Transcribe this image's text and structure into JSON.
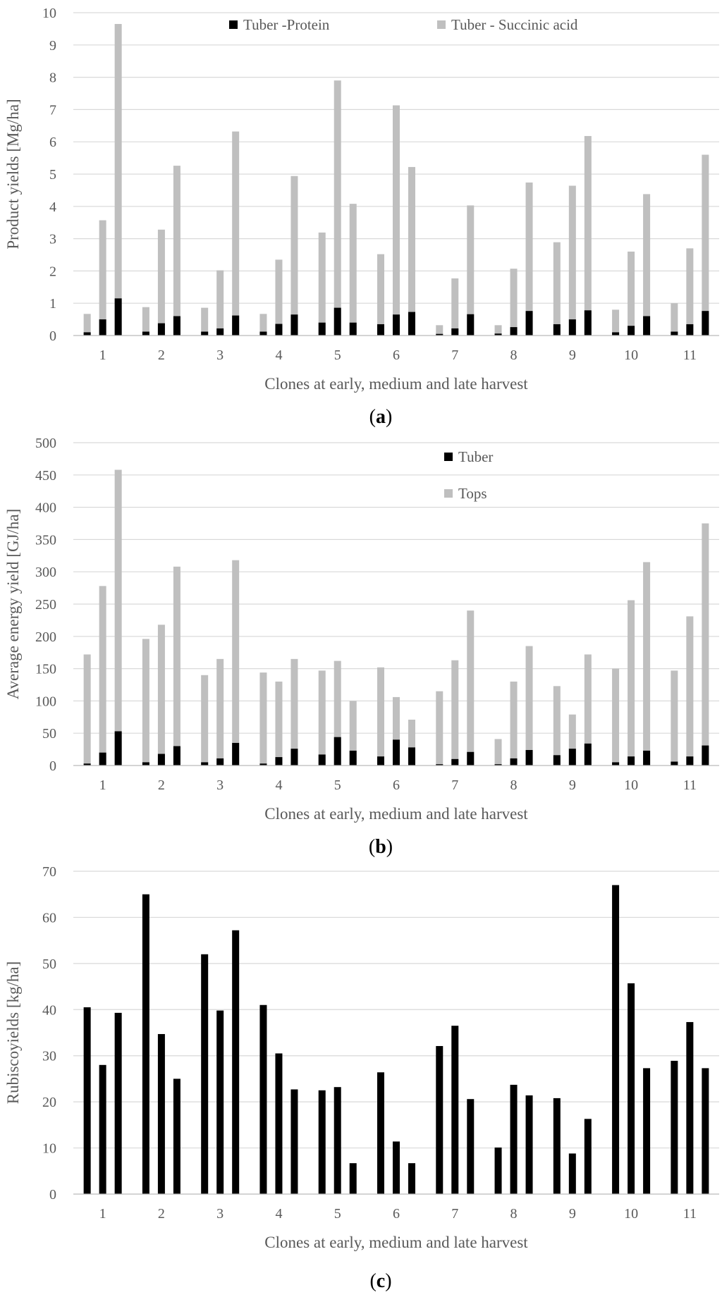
{
  "colors": {
    "black": "#000000",
    "gray": "#bfbfbf",
    "grid": "#d9d9d9",
    "text": "#595959"
  },
  "chart_data": [
    {
      "type": "bar",
      "caption_open": "(",
      "caption_letter": "a",
      "caption_close": ")",
      "xlabel": "Clones at early, medium and late harvest",
      "ylabel": "Product yields [Mg/ha]",
      "ylim": [
        0,
        10
      ],
      "yticks": [
        0,
        1,
        2,
        3,
        4,
        5,
        6,
        7,
        8,
        9,
        10
      ],
      "categories": [
        "1",
        "2",
        "3",
        "4",
        "5",
        "6",
        "7",
        "8",
        "9",
        "10",
        "11"
      ],
      "harvests": [
        "early",
        "medium",
        "late"
      ],
      "legend_position": "top",
      "series": [
        {
          "name": "Tuber -Protein",
          "color": "#000000",
          "values": [
            [
              0.1,
              0.5,
              1.15
            ],
            [
              0.12,
              0.38,
              0.6
            ],
            [
              0.12,
              0.22,
              0.62
            ],
            [
              0.12,
              0.36,
              0.65
            ],
            [
              0.4,
              0.86,
              0.4
            ],
            [
              0.35,
              0.65,
              0.73
            ],
            [
              0.05,
              0.22,
              0.66
            ],
            [
              0.06,
              0.26,
              0.76
            ],
            [
              0.35,
              0.5,
              0.78
            ],
            [
              0.1,
              0.3,
              0.6
            ],
            [
              0.12,
              0.35,
              0.76
            ]
          ]
        },
        {
          "name": "Tuber - Succinic acid",
          "color": "#bfbfbf",
          "values": [
            [
              0.67,
              3.57,
              9.65
            ],
            [
              0.88,
              3.28,
              5.26
            ],
            [
              0.86,
              2.02,
              6.32
            ],
            [
              0.67,
              2.35,
              4.94
            ],
            [
              3.19,
              7.9,
              4.08
            ],
            [
              2.52,
              7.13,
              5.22
            ],
            [
              0.32,
              1.77,
              4.03
            ],
            [
              0.32,
              2.07,
              4.74
            ],
            [
              2.89,
              4.64,
              6.18
            ],
            [
              0.8,
              2.6,
              4.38
            ],
            [
              1.0,
              2.7,
              5.6
            ]
          ]
        }
      ]
    },
    {
      "type": "bar",
      "caption_open": "(",
      "caption_letter": "b",
      "caption_close": ")",
      "xlabel": "Clones at early, medium and late harvest",
      "ylabel": "Average energy yield [GJ/ha]",
      "ylim": [
        0,
        500
      ],
      "yticks": [
        0,
        50,
        100,
        150,
        200,
        250,
        300,
        350,
        400,
        450,
        500
      ],
      "categories": [
        "1",
        "2",
        "3",
        "4",
        "5",
        "6",
        "7",
        "8",
        "9",
        "10",
        "11"
      ],
      "harvests": [
        "early",
        "medium",
        "late"
      ],
      "legend_position": "top",
      "series": [
        {
          "name": "Tuber",
          "color": "#000000",
          "values": [
            [
              3,
              20,
              53
            ],
            [
              5,
              18,
              30
            ],
            [
              5,
              11,
              35
            ],
            [
              3,
              13,
              26
            ],
            [
              17,
              44,
              23
            ],
            [
              14,
              40,
              28
            ],
            [
              2,
              10,
              21
            ],
            [
              2,
              11,
              24
            ],
            [
              16,
              26,
              34
            ],
            [
              5,
              14,
              23
            ],
            [
              6,
              14,
              31
            ]
          ]
        },
        {
          "name": "Tops",
          "color": "#bfbfbf",
          "values": [
            [
              172,
              278,
              458
            ],
            [
              196,
              218,
              308
            ],
            [
              140,
              165,
              318
            ],
            [
              144,
              130,
              165
            ],
            [
              147,
              162,
              100
            ],
            [
              152,
              106,
              71
            ],
            [
              115,
              163,
              240
            ],
            [
              41,
              130,
              185
            ],
            [
              123,
              79,
              172
            ],
            [
              150,
              256,
              315
            ],
            [
              147,
              231,
              375
            ]
          ]
        }
      ]
    },
    {
      "type": "bar",
      "caption_open": "(",
      "caption_letter": "c",
      "caption_close": ")",
      "xlabel": "Clones at early, medium and late harvest",
      "ylabel": "Rubiscoyields [kg/ha]",
      "ylim": [
        0,
        70
      ],
      "yticks": [
        0,
        10,
        20,
        30,
        40,
        50,
        60,
        70
      ],
      "categories": [
        "1",
        "2",
        "3",
        "4",
        "5",
        "6",
        "7",
        "8",
        "9",
        "10",
        "11"
      ],
      "harvests": [
        "early",
        "medium",
        "late"
      ],
      "series": [
        {
          "name": "",
          "color": "#000000",
          "values": [
            [
              40.5,
              28,
              39.3
            ],
            [
              65,
              34.7,
              25
            ],
            [
              52,
              39.8,
              57.2
            ],
            [
              41,
              30.5,
              22.7
            ],
            [
              22.5,
              23.2,
              6.7
            ],
            [
              26.4,
              11.4,
              6.7
            ],
            [
              32.1,
              36.5,
              20.6
            ],
            [
              10.1,
              23.7,
              21.4
            ],
            [
              20.8,
              8.8,
              16.3
            ],
            [
              67,
              45.7,
              27.3
            ],
            [
              28.9,
              37.3,
              27.3
            ]
          ]
        }
      ]
    }
  ]
}
